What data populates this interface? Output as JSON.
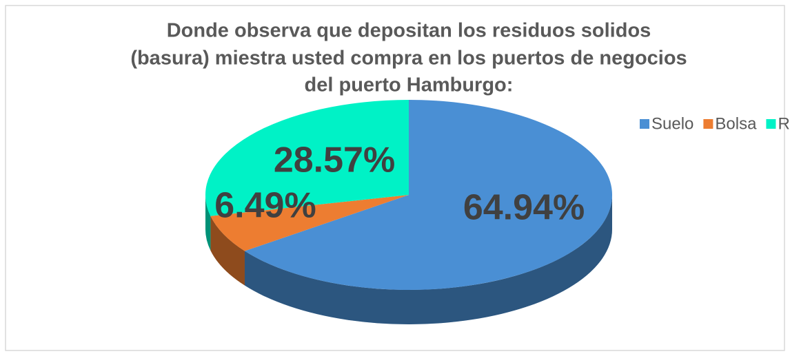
{
  "chart_data": {
    "type": "pie3d",
    "title": [
      "Donde observa que depositan los residuos solidos",
      "(basura) miestra usted compra en los puertos de negocios",
      "del puerto Hamburgo:"
    ],
    "categories": [
      "Suelo",
      "Bolsa",
      "Rios"
    ],
    "values": [
      64.94,
      6.49,
      28.57
    ],
    "value_labels": [
      "64.94%",
      "6.49%",
      "28.57%"
    ],
    "colors": [
      "#4a8fd4",
      "#ed7d31",
      "#00f2c6"
    ],
    "legend": "top-right"
  }
}
